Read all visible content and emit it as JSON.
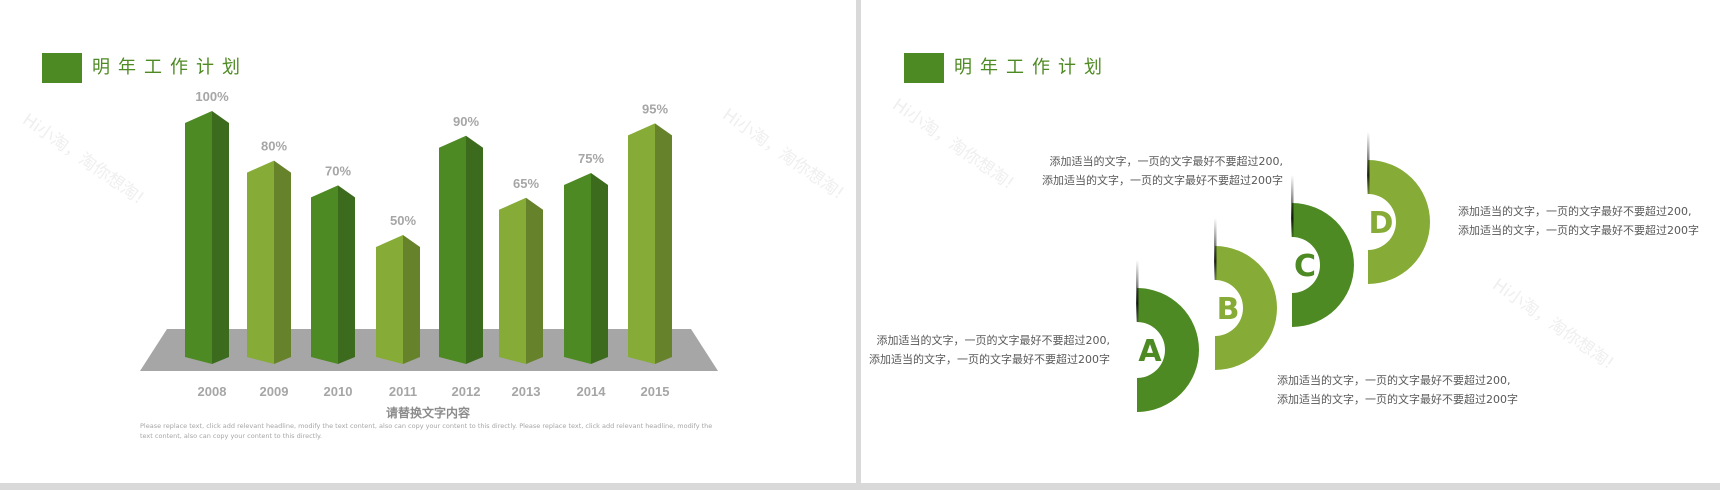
{
  "left_slide": {
    "title": "明年工作计划",
    "caption": "请替换文字内容",
    "body_text": "Please replace text, click add relevant headline, modify the text content, also can copy your content to this directly. Please replace text, click add relevant headline, modify the text content, also can copy your content to this directly."
  },
  "right_slide": {
    "title": "明年工作计划",
    "steps": [
      {
        "letter": "A",
        "color": "#4e8a23",
        "line1": "添加适当的文字，一页的文字最好不要超过200,",
        "line2": "添加适当的文字，一页的文字最好不要超过200字"
      },
      {
        "letter": "B",
        "color": "#86ab36",
        "line1": "添加适当的文字，一页的文字最好不要超过200,",
        "line2": "添加适当的文字，一页的文字最好不要超过200字"
      },
      {
        "letter": "C",
        "color": "#4e8a23",
        "line1": "添加适当的文字，一页的文字最好不要超过200,",
        "line2": "添加适当的文字，一页的文字最好不要超过200字"
      },
      {
        "letter": "D",
        "color": "#86ab36",
        "line1": "添加适当的文字，一页的文字最好不要超过200,",
        "line2": "添加适当的文字，一页的文字最好不要超过200字"
      }
    ]
  },
  "watermark": "Hi小淘，淘你想淘!",
  "colors": {
    "dark_green": "#4e8a23",
    "dark_green_side": "#3c6b1e",
    "light_green": "#86ab36",
    "light_green_side": "#66832b",
    "floor": "#a6a6a6",
    "label": "#a6a6a6"
  },
  "chart_data": {
    "type": "bar",
    "style": "3d-column",
    "categories": [
      "2008",
      "2009",
      "2010",
      "2011",
      "2012",
      "2013",
      "2014",
      "2015"
    ],
    "values": [
      100,
      80,
      70,
      50,
      90,
      65,
      75,
      95
    ],
    "data_labels": [
      "100%",
      "80%",
      "70%",
      "50%",
      "90%",
      "65%",
      "75%",
      "95%"
    ],
    "title": "",
    "xlabel": "",
    "ylabel": "",
    "ylim": [
      0,
      100
    ],
    "grid": false
  }
}
